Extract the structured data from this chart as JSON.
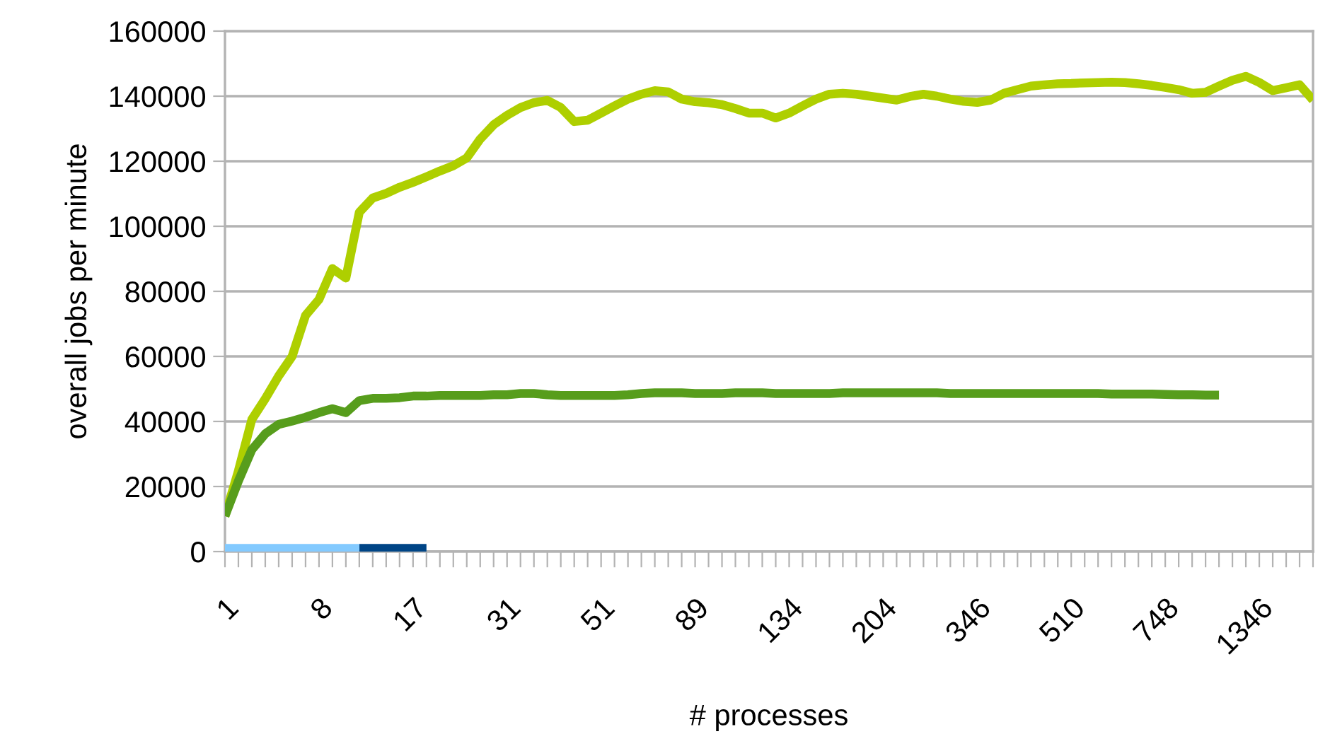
{
  "chart_data": {
    "type": "line",
    "xlabel": "# processes",
    "ylabel": "overall jobs per minute",
    "categories": [
      "1",
      null,
      null,
      null,
      null,
      null,
      null,
      "8",
      null,
      null,
      null,
      null,
      null,
      null,
      "17",
      null,
      null,
      null,
      null,
      null,
      null,
      "31",
      null,
      null,
      null,
      null,
      null,
      null,
      "51",
      null,
      null,
      null,
      null,
      null,
      null,
      "89",
      null,
      null,
      null,
      null,
      null,
      null,
      "134",
      null,
      null,
      null,
      null,
      null,
      null,
      "204",
      null,
      null,
      null,
      null,
      null,
      null,
      "346",
      null,
      null,
      null,
      null,
      null,
      null,
      "510",
      null,
      null,
      null,
      null,
      null,
      null,
      "748",
      null,
      null,
      null,
      null,
      null,
      null,
      "1346",
      null,
      null,
      null,
      null
    ],
    "ylim": [
      0,
      160000
    ],
    "yticks": [
      0,
      20000,
      40000,
      60000,
      80000,
      100000,
      120000,
      140000,
      160000
    ],
    "grid": "y",
    "legend": false,
    "marker": "none",
    "line_style": "solid",
    "series": [
      {
        "color": "#aecf00",
        "values": [
          10900,
          24800,
          40600,
          47000,
          54000,
          60000,
          72600,
          77500,
          87000,
          84100,
          104300,
          108700,
          110100,
          112000,
          113500,
          115200,
          117000,
          118600,
          121000,
          126800,
          131200,
          134100,
          136500,
          138000,
          138700,
          136500,
          132200,
          132600,
          134800,
          137000,
          139100,
          140600,
          141700,
          141300,
          139100,
          138300,
          138000,
          137400,
          136200,
          134800,
          134800,
          133300,
          134800,
          137000,
          139100,
          140600,
          140900,
          140600,
          140000,
          139400,
          138800,
          139900,
          140600,
          140000,
          139100,
          138400,
          138100,
          138800,
          140900,
          142000,
          143100,
          143500,
          143800,
          143900,
          144100,
          144200,
          144300,
          144200,
          143800,
          143300,
          142700,
          142000,
          140900,
          141200,
          143100,
          144900,
          146100,
          144200,
          141700,
          142600,
          143500,
          138800
        ]
      },
      {
        "color": "#579d1c",
        "values": [
          10900,
          21700,
          31300,
          36200,
          39100,
          40100,
          41300,
          42700,
          43900,
          42700,
          46400,
          47100,
          47100,
          47300,
          47800,
          47800,
          48000,
          48000,
          48000,
          48000,
          48200,
          48200,
          48600,
          48600,
          48200,
          48000,
          48000,
          48000,
          48000,
          48000,
          48200,
          48600,
          48800,
          48800,
          48800,
          48600,
          48600,
          48600,
          48800,
          48800,
          48800,
          48600,
          48600,
          48600,
          48600,
          48600,
          48800,
          48800,
          48800,
          48800,
          48800,
          48800,
          48800,
          48800,
          48600,
          48600,
          48600,
          48600,
          48600,
          48600,
          48600,
          48600,
          48600,
          48600,
          48600,
          48600,
          48400,
          48400,
          48400,
          48400,
          48300,
          48200,
          48200,
          48100,
          48100,
          null,
          null,
          null,
          null,
          null,
          null,
          null
        ]
      },
      {
        "color": "#004586",
        "values": [
          null,
          null,
          null,
          null,
          null,
          null,
          null,
          null,
          null,
          null,
          1000,
          1000,
          1000,
          1000,
          1000,
          1000,
          null,
          null,
          null,
          null,
          null,
          null,
          null,
          null,
          null,
          null,
          null,
          null,
          null,
          null,
          null,
          null,
          null,
          null,
          null,
          null,
          null,
          null,
          null,
          null,
          null,
          null,
          null,
          null,
          null,
          null,
          null,
          null,
          null,
          null,
          null,
          null,
          null,
          null,
          null,
          null,
          null,
          null,
          null,
          null,
          null,
          null,
          null,
          null,
          null,
          null,
          null,
          null,
          null,
          null,
          null,
          null,
          null,
          null,
          null,
          null,
          null,
          null,
          null,
          null,
          null,
          null
        ]
      },
      {
        "color": "#83caff",
        "values": [
          1000,
          1000,
          1000,
          1000,
          1000,
          1000,
          1000,
          1000,
          1000,
          1000,
          1000,
          null,
          null,
          null,
          null,
          null,
          null,
          null,
          null,
          null,
          null,
          null,
          null,
          null,
          null,
          null,
          null,
          null,
          null,
          null,
          null,
          null,
          null,
          null,
          null,
          null,
          null,
          null,
          null,
          null,
          null,
          null,
          null,
          null,
          null,
          null,
          null,
          null,
          null,
          null,
          null,
          null,
          null,
          null,
          null,
          null,
          null,
          null,
          null,
          null,
          null,
          null,
          null,
          null,
          null,
          null,
          null,
          null,
          null,
          null,
          null,
          null,
          null,
          null,
          null,
          null,
          null,
          null,
          null,
          null,
          null,
          null
        ]
      }
    ]
  }
}
